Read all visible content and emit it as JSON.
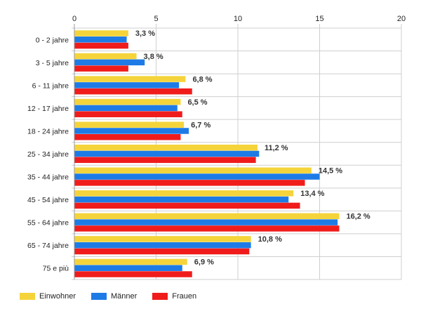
{
  "chart_data": {
    "type": "bar",
    "orientation": "horizontal",
    "categories": [
      "0 - 2 jahre",
      "3 - 5 jahre",
      "6 - 11 jahre",
      "12 - 17 jahre",
      "18 - 24 jahre",
      "25 - 34 jahre",
      "35 - 44 jahre",
      "45 - 54 jahre",
      "55 - 64 jahre",
      "65 - 74 jahre",
      "75 e più"
    ],
    "series": [
      {
        "name": "Einwohner",
        "color": "#f5d43b",
        "values": [
          3.3,
          3.8,
          6.8,
          6.5,
          6.7,
          11.2,
          14.5,
          13.4,
          16.2,
          10.8,
          6.9
        ]
      },
      {
        "name": "Männer",
        "color": "#1e7be6",
        "values": [
          3.2,
          4.3,
          6.4,
          6.3,
          7.0,
          11.3,
          15.0,
          13.1,
          16.1,
          10.8,
          6.6
        ]
      },
      {
        "name": "Frauen",
        "color": "#f01c1c",
        "values": [
          3.3,
          3.3,
          7.2,
          6.6,
          6.5,
          11.1,
          14.1,
          13.8,
          16.2,
          10.7,
          7.2
        ]
      }
    ],
    "data_labels": [
      "3,3 %",
      "3,8 %",
      "6,8 %",
      "6,5 %",
      "6,7 %",
      "11,2 %",
      "14,5 %",
      "13,4 %",
      "16,2 %",
      "10,8 %",
      "6,9 %"
    ],
    "xlim": [
      0,
      20
    ],
    "xticks": [
      0,
      5,
      10,
      15,
      20
    ],
    "axis_position": "top",
    "grid": true,
    "legend_position": "bottom-left"
  }
}
